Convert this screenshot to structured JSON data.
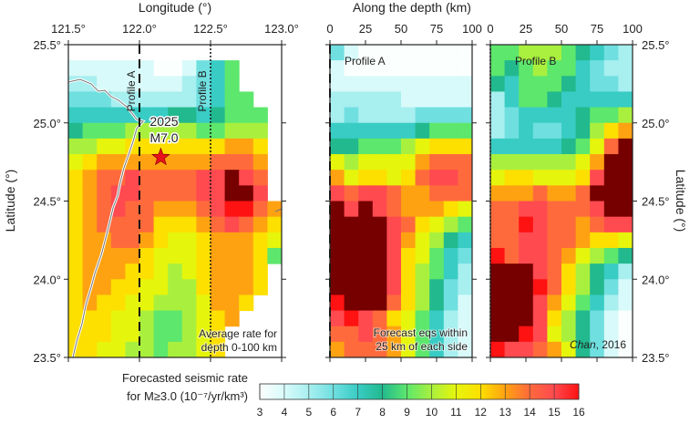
{
  "chart_data": [
    {
      "type": "heatmap",
      "panel": "map",
      "xlabel": "Longitude (°)",
      "ylabel": "Latitude (°)",
      "xlim": [
        121.5,
        123.0
      ],
      "ylim": [
        23.5,
        25.5
      ],
      "xticks": [
        "121.5°",
        "122.0°",
        "122.5°",
        "123.0°"
      ],
      "yticks": [
        "25.5°",
        "25.0°",
        "24.5°",
        "24.0°",
        "23.5°"
      ],
      "annotations": {
        "profile_a": "Profile A",
        "profile_b": "Profile B",
        "event_year": "2025",
        "event_mag": "M7.0",
        "note_line1": "Average rate for",
        "note_line2": "depth 0-100 km"
      },
      "profile_a_lon": 122.0,
      "profile_b_lon": 122.5,
      "event": {
        "lon": 122.15,
        "lat": 24.78
      },
      "cell_size_deg": [
        0.1,
        0.1
      ],
      "values": [
        [
          null,
          null,
          null,
          null,
          null,
          null,
          null,
          null,
          null,
          null,
          null,
          null,
          null,
          null,
          null
        ],
        [
          4,
          4,
          4,
          4,
          4,
          4,
          3,
          3,
          4,
          6,
          7,
          9,
          null,
          null,
          null
        ],
        [
          5,
          5,
          4,
          4,
          4,
          4,
          4,
          4,
          5,
          6,
          7,
          9,
          null,
          null,
          null
        ],
        [
          6,
          6,
          6,
          5,
          5,
          5,
          5,
          5,
          5,
          6,
          7,
          9,
          9,
          null,
          null
        ],
        [
          7,
          7,
          7,
          7,
          7,
          7,
          7,
          8,
          8,
          7,
          8,
          9,
          9,
          9,
          null
        ],
        [
          8,
          9,
          9,
          9,
          10,
          10,
          10,
          10,
          10,
          9,
          9,
          10,
          10,
          10,
          null
        ],
        [
          10,
          10,
          11,
          11,
          12,
          12,
          12,
          12,
          12,
          12,
          12,
          13,
          13,
          12,
          null
        ],
        [
          11,
          12,
          13,
          13,
          13,
          13,
          13,
          13,
          13,
          13,
          14,
          14,
          14,
          13,
          null
        ],
        [
          12,
          13,
          14,
          14,
          15,
          14,
          14,
          14,
          14,
          15,
          15,
          17,
          15,
          14,
          null
        ],
        [
          12,
          13,
          14,
          15,
          15,
          14,
          14,
          14,
          14,
          15,
          15,
          17,
          17,
          15,
          null
        ],
        [
          12,
          13,
          14,
          15,
          14,
          14,
          13,
          13,
          13,
          14,
          15,
          16,
          16,
          14,
          13
        ],
        [
          12,
          13,
          14,
          14,
          14,
          14,
          12,
          12,
          12,
          13,
          14,
          15,
          14,
          13,
          12
        ],
        [
          12,
          13,
          13,
          14,
          14,
          13,
          12,
          11,
          11,
          12,
          13,
          13,
          13,
          12,
          11
        ],
        [
          12,
          13,
          13,
          13,
          13,
          12,
          11,
          11,
          11,
          12,
          13,
          13,
          13,
          12,
          9
        ],
        [
          12,
          13,
          13,
          13,
          12,
          12,
          11,
          10,
          11,
          12,
          13,
          13,
          13,
          12,
          null
        ],
        [
          12,
          13,
          13,
          12,
          12,
          11,
          11,
          10,
          10,
          12,
          13,
          13,
          13,
          12,
          null
        ],
        [
          12,
          13,
          12,
          12,
          11,
          11,
          10,
          10,
          10,
          11,
          13,
          13,
          12,
          null,
          null
        ],
        [
          12,
          12,
          12,
          11,
          11,
          10,
          9,
          9,
          10,
          11,
          12,
          13,
          null,
          null,
          null
        ],
        [
          12,
          12,
          12,
          11,
          11,
          10,
          9,
          9,
          10,
          11,
          12,
          null,
          null,
          null,
          null
        ],
        [
          12,
          12,
          11,
          11,
          10,
          10,
          9,
          10,
          10,
          11,
          12,
          null,
          null,
          null,
          null
        ]
      ]
    },
    {
      "type": "heatmap",
      "panel": "profile-a",
      "title": "Profile A",
      "xlim": [
        0,
        100
      ],
      "ylim": [
        23.5,
        25.5
      ],
      "xticks": [
        "0",
        "25",
        "50",
        "75",
        "100"
      ],
      "annotations": {
        "note_line1": "Forecast eqs within",
        "note_line2": "25 km of each side"
      },
      "values": [
        [
          6,
          4,
          3,
          3,
          3,
          3,
          3,
          3,
          3,
          3
        ],
        [
          4,
          3,
          3,
          3,
          3,
          3,
          3,
          3,
          3,
          3
        ],
        [
          4,
          4,
          4,
          4,
          4,
          4,
          4,
          4,
          4,
          4
        ],
        [
          5,
          5,
          5,
          5,
          5,
          4,
          4,
          4,
          4,
          4
        ],
        [
          5,
          6,
          5,
          5,
          5,
          5,
          6,
          6,
          6,
          6
        ],
        [
          7,
          7,
          7,
          7,
          7,
          7,
          8,
          9,
          9,
          9
        ],
        [
          8,
          8,
          9,
          9,
          9,
          10,
          11,
          12,
          12,
          12
        ],
        [
          11,
          10,
          11,
          11,
          11,
          11,
          13,
          14,
          14,
          14
        ],
        [
          13,
          11,
          12,
          12,
          11,
          12,
          14,
          15,
          15,
          14
        ],
        [
          15,
          14,
          15,
          15,
          14,
          13,
          13,
          14,
          14,
          14
        ],
        [
          17,
          15,
          17,
          15,
          14,
          13,
          13,
          13,
          12,
          11
        ],
        [
          17,
          17,
          17,
          17,
          15,
          14,
          12,
          11,
          10,
          9
        ],
        [
          17,
          17,
          17,
          17,
          15,
          13,
          11,
          10,
          8,
          7
        ],
        [
          17,
          17,
          17,
          17,
          15,
          12,
          11,
          9,
          7,
          6
        ],
        [
          17,
          17,
          17,
          17,
          15,
          12,
          10,
          9,
          7,
          5
        ],
        [
          17,
          17,
          17,
          17,
          15,
          12,
          10,
          8,
          6,
          5
        ],
        [
          16,
          17,
          17,
          17,
          14,
          12,
          10,
          8,
          6,
          4
        ],
        [
          15,
          16,
          15,
          14,
          12,
          11,
          9,
          7,
          5,
          4
        ],
        [
          14,
          14,
          15,
          14,
          13,
          11,
          9,
          7,
          5,
          4
        ],
        [
          13,
          14,
          14,
          14,
          13,
          11,
          9,
          7,
          5,
          4
        ]
      ]
    },
    {
      "type": "heatmap",
      "panel": "profile-b",
      "title": "Profile B",
      "xlim": [
        0,
        100
      ],
      "ylim": [
        23.5,
        25.5
      ],
      "xticks": [
        "0",
        "25",
        "50",
        "75",
        "100"
      ],
      "ylabel": "Latitude (°)",
      "yticks": [
        "25.5°",
        "25.0°",
        "24.5°",
        "24.0°",
        "23.5°"
      ],
      "annotations": {
        "credit_author": "Chan",
        "credit_year": ", 2016"
      },
      "values": [
        [
          9,
          9,
          10,
          10,
          10,
          9,
          8,
          7,
          6,
          5
        ],
        [
          9,
          8,
          9,
          10,
          9,
          9,
          7,
          6,
          5,
          5
        ],
        [
          8,
          7,
          9,
          9,
          9,
          8,
          7,
          6,
          6,
          5
        ],
        [
          5,
          7,
          9,
          9,
          8,
          7,
          7,
          7,
          7,
          7
        ],
        [
          5,
          6,
          7,
          7,
          7,
          7,
          8,
          9,
          9,
          10
        ],
        [
          5,
          6,
          7,
          6,
          6,
          7,
          8,
          10,
          12,
          13
        ],
        [
          7,
          7,
          7,
          7,
          7,
          8,
          9,
          11,
          14,
          17
        ],
        [
          10,
          10,
          10,
          10,
          10,
          10,
          11,
          13,
          17,
          17
        ],
        [
          11,
          12,
          12,
          11,
          11,
          11,
          12,
          15,
          17,
          17
        ],
        [
          13,
          13,
          13,
          14,
          13,
          13,
          14,
          17,
          17,
          17
        ],
        [
          14,
          14,
          15,
          15,
          14,
          14,
          14,
          15,
          17,
          17
        ],
        [
          14,
          14,
          16,
          15,
          14,
          14,
          13,
          14,
          15,
          15
        ],
        [
          14,
          14,
          15,
          15,
          14,
          14,
          13,
          12,
          12,
          11
        ],
        [
          16,
          14,
          15,
          15,
          14,
          13,
          11,
          10,
          9,
          8
        ],
        [
          17,
          17,
          17,
          15,
          14,
          12,
          10,
          8,
          7,
          5
        ],
        [
          17,
          17,
          17,
          16,
          14,
          12,
          10,
          8,
          6,
          4
        ],
        [
          17,
          17,
          17,
          15,
          13,
          11,
          9,
          7,
          5,
          4
        ],
        [
          17,
          17,
          17,
          15,
          12,
          10,
          8,
          6,
          4,
          3
        ],
        [
          17,
          17,
          16,
          15,
          11,
          10,
          8,
          6,
          4,
          3
        ],
        [
          16,
          15,
          15,
          14,
          13,
          11,
          8,
          6,
          4,
          3
        ]
      ]
    }
  ],
  "depth_axis_title": "Along the depth (km)",
  "colorbar": {
    "label_line1": "Forecasted seismic rate",
    "label_line2": "for M≥3.0 (10⁻⁷/yr/km³)",
    "ticks": [
      "3",
      "4",
      "5",
      "6",
      "7",
      "8",
      "9",
      "10",
      "11",
      "12",
      "13",
      "14",
      "15",
      "16"
    ],
    "range": [
      3,
      16
    ],
    "colors": {
      "3": "#fbfffe",
      "4": "#d9fafa",
      "5": "#a8eff0",
      "6": "#70dfe0",
      "7": "#38ccc4",
      "8": "#22b98e",
      "9": "#5de76c",
      "10": "#a9f03e",
      "11": "#e6f50c",
      "12": "#fddf00",
      "13": "#ffa212",
      "14": "#ff6a3c",
      "15": "#ff4a50",
      "16": "#ff1212",
      "17": "#760000"
    }
  },
  "star_color": "#e8121a"
}
